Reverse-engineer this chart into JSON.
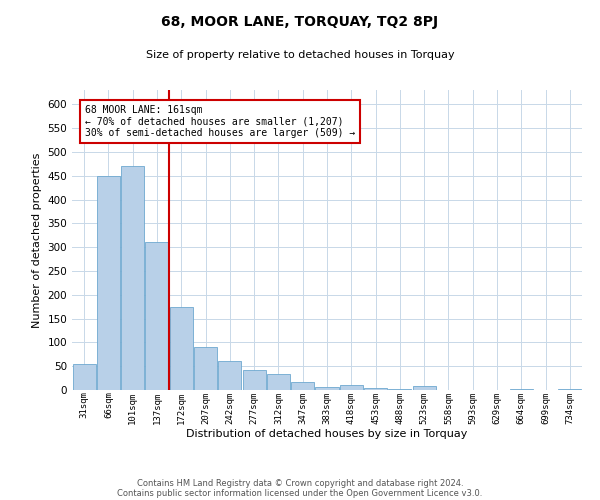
{
  "title": "68, MOOR LANE, TORQUAY, TQ2 8PJ",
  "subtitle": "Size of property relative to detached houses in Torquay",
  "xlabel": "Distribution of detached houses by size in Torquay",
  "ylabel": "Number of detached properties",
  "bins": [
    "31sqm",
    "66sqm",
    "101sqm",
    "137sqm",
    "172sqm",
    "207sqm",
    "242sqm",
    "277sqm",
    "312sqm",
    "347sqm",
    "383sqm",
    "418sqm",
    "453sqm",
    "488sqm",
    "523sqm",
    "558sqm",
    "593sqm",
    "629sqm",
    "664sqm",
    "699sqm",
    "734sqm"
  ],
  "values": [
    55,
    450,
    470,
    310,
    175,
    90,
    60,
    42,
    33,
    17,
    7,
    10,
    5,
    3,
    8,
    1,
    0,
    0,
    3,
    0,
    2
  ],
  "bar_color": "#b8d0e8",
  "bar_edge_color": "#6ea8d0",
  "vline_color": "#cc0000",
  "annotation_text": "68 MOOR LANE: 161sqm\n← 70% of detached houses are smaller (1,207)\n30% of semi-detached houses are larger (509) →",
  "annotation_box_color": "#ffffff",
  "annotation_box_edge_color": "#cc0000",
  "ylim": [
    0,
    630
  ],
  "yticks": [
    0,
    50,
    100,
    150,
    200,
    250,
    300,
    350,
    400,
    450,
    500,
    550,
    600
  ],
  "footnote1": "Contains HM Land Registry data © Crown copyright and database right 2024.",
  "footnote2": "Contains public sector information licensed under the Open Government Licence v3.0.",
  "background_color": "#ffffff",
  "grid_color": "#c8d8e8",
  "title_fontsize": 10,
  "subtitle_fontsize": 8
}
